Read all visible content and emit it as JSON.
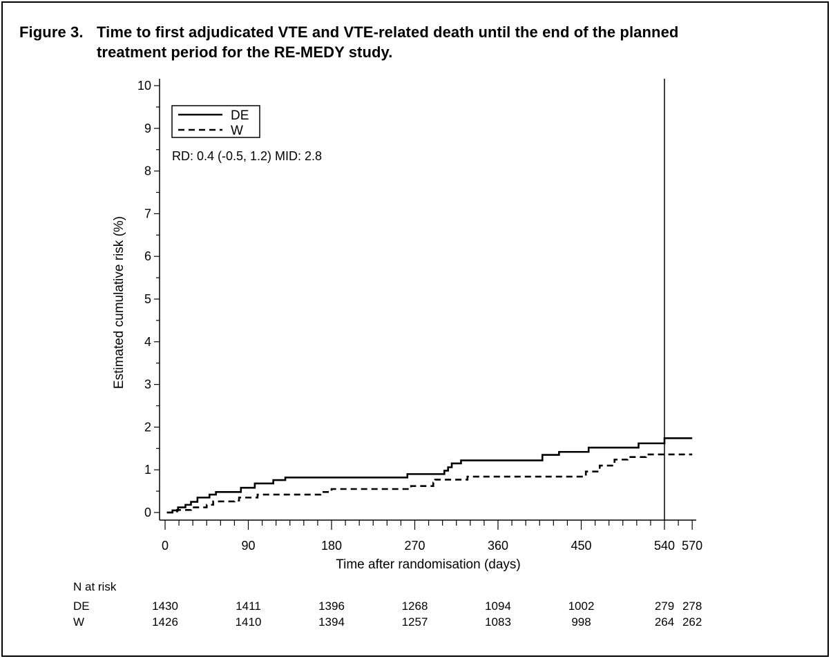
{
  "title": {
    "number": "Figure 3.",
    "line1": "Time to first adjudicated VTE and VTE-related death until the end of the planned",
    "line2": "treatment period for the RE-MEDY study."
  },
  "chart_data": {
    "type": "line",
    "step": true,
    "xlabel": "Time after randomisation (days)",
    "ylabel": "Estimated cumulative risk (%)",
    "xlim": [
      0,
      575
    ],
    "ylim": [
      0,
      10
    ],
    "xticks": [
      0,
      90,
      180,
      270,
      360,
      450,
      540,
      570
    ],
    "yticks": [
      0,
      1,
      2,
      3,
      4,
      5,
      6,
      7,
      8,
      9,
      10
    ],
    "reference_line_x": 540,
    "annotation": "RD: 0.4 (-0.5, 1.2) MID: 2.8",
    "legend_position": "top-left",
    "series": [
      {
        "name": "DE",
        "style": "solid",
        "points": [
          [
            2,
            0
          ],
          [
            4,
            0
          ],
          [
            8,
            0.05
          ],
          [
            14,
            0.12
          ],
          [
            22,
            0.18
          ],
          [
            28,
            0.25
          ],
          [
            35,
            0.35
          ],
          [
            48,
            0.42
          ],
          [
            55,
            0.48
          ],
          [
            82,
            0.58
          ],
          [
            97,
            0.68
          ],
          [
            117,
            0.76
          ],
          [
            130,
            0.82
          ],
          [
            260,
            0.82
          ],
          [
            262,
            0.9
          ],
          [
            300,
            0.9
          ],
          [
            302,
            0.98
          ],
          [
            306,
            1.06
          ],
          [
            310,
            1.15
          ],
          [
            320,
            1.22
          ],
          [
            406,
            1.22
          ],
          [
            408,
            1.35
          ],
          [
            426,
            1.42
          ],
          [
            458,
            1.52
          ],
          [
            510,
            1.52
          ],
          [
            512,
            1.62
          ],
          [
            537,
            1.62
          ],
          [
            540,
            1.74
          ],
          [
            570,
            1.74
          ]
        ]
      },
      {
        "name": "W",
        "style": "dashed",
        "points": [
          [
            2,
            0
          ],
          [
            4,
            0
          ],
          [
            13,
            0.06
          ],
          [
            28,
            0.12
          ],
          [
            45,
            0.18
          ],
          [
            52,
            0.26
          ],
          [
            75,
            0.28
          ],
          [
            80,
            0.35
          ],
          [
            100,
            0.42
          ],
          [
            166,
            0.42
          ],
          [
            168,
            0.48
          ],
          [
            180,
            0.55
          ],
          [
            264,
            0.55
          ],
          [
            266,
            0.62
          ],
          [
            290,
            0.7
          ],
          [
            292,
            0.77
          ],
          [
            325,
            0.77
          ],
          [
            327,
            0.84
          ],
          [
            450,
            0.84
          ],
          [
            455,
            0.96
          ],
          [
            470,
            1.1
          ],
          [
            486,
            1.24
          ],
          [
            500,
            1.3
          ],
          [
            520,
            1.36
          ],
          [
            570,
            1.36
          ]
        ]
      }
    ],
    "risk_table": {
      "header": "N at risk",
      "times": [
        0,
        90,
        180,
        270,
        360,
        450,
        540,
        570
      ],
      "rows": [
        {
          "label": "DE",
          "values": [
            "1430",
            "1411",
            "1396",
            "1268",
            "1094",
            "1002",
            "279",
            "278"
          ]
        },
        {
          "label": "W",
          "values": [
            "1426",
            "1410",
            "1394",
            "1257",
            "1083",
            "998",
            "264",
            "262"
          ]
        }
      ]
    }
  }
}
